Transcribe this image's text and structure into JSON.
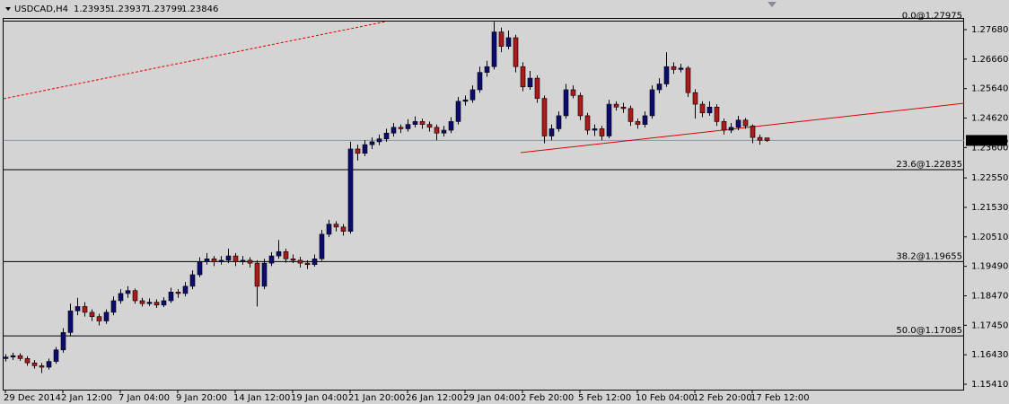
{
  "chart_data": {
    "type": "candlestick",
    "title": "USDCAD,H4",
    "up_color": "#0b0b72",
    "down_color": "#b01818",
    "wick_color": "#000000",
    "xlim": [
      -0.25,
      133.5
    ],
    "ylim": [
      1.15224,
      1.28022
    ],
    "yticks": [
      {
        "value": 1.2768,
        "label": "1.27680"
      },
      {
        "value": 1.2666,
        "label": "1.26660"
      },
      {
        "value": 1.2564,
        "label": "1.25640"
      },
      {
        "value": 1.2462,
        "label": "1.24620"
      },
      {
        "value": 1.236,
        "label": "1.23600"
      },
      {
        "value": 1.2255,
        "label": "1.22550"
      },
      {
        "value": 1.2153,
        "label": "1.21530"
      },
      {
        "value": 1.2051,
        "label": "1.20510"
      },
      {
        "value": 1.1949,
        "label": "1.19490"
      },
      {
        "value": 1.1847,
        "label": "1.18470"
      },
      {
        "value": 1.1745,
        "label": "1.17450"
      },
      {
        "value": 1.1643,
        "label": "1.16430"
      },
      {
        "value": 1.1541,
        "label": "1.15410"
      }
    ],
    "xticks": [
      {
        "value": 0,
        "label": "29 Dec 2014"
      },
      {
        "value": 8,
        "label": "2 Jan 12:00"
      },
      {
        "value": 16,
        "label": "7 Jan 04:00"
      },
      {
        "value": 24,
        "label": "9 Jan 20:00"
      },
      {
        "value": 32,
        "label": "14 Jan 12:00"
      },
      {
        "value": 40,
        "label": "19 Jan 04:00"
      },
      {
        "value": 48,
        "label": "21 Jan 20:00"
      },
      {
        "value": 56,
        "label": "26 Jan 12:00"
      },
      {
        "value": 64,
        "label": "29 Jan 04:00"
      },
      {
        "value": 72,
        "label": "2 Feb 20:00"
      },
      {
        "value": 80,
        "label": "5 Feb 12:00"
      },
      {
        "value": 88,
        "label": "10 Feb 04:00"
      },
      {
        "value": 96,
        "label": "12 Feb 20:00"
      },
      {
        "value": 104,
        "label": "17 Feb 12:00"
      }
    ],
    "fib_levels": [
      {
        "value": 1.27975,
        "label": "0.0@1.27975"
      },
      {
        "value": 1.22835,
        "label": "23.6@1.22835"
      },
      {
        "value": 1.19655,
        "label": "38.2@1.19655"
      },
      {
        "value": 1.17085,
        "label": "50.0@1.17085"
      }
    ],
    "trendlines": [
      {
        "color": "#e00000",
        "dashed": true,
        "points": [
          [
            -0.25,
            1.25288
          ],
          [
            53,
            1.2796
          ]
        ]
      },
      {
        "color": "#e00000",
        "dashed": false,
        "points": [
          [
            71.75,
            1.23424
          ],
          [
            133.5,
            1.25133
          ]
        ]
      }
    ],
    "candles": [
      [
        1.163,
        1.1645,
        1.162,
        1.1635
      ],
      [
        1.1635,
        1.165,
        1.1625,
        1.164
      ],
      [
        1.164,
        1.1648,
        1.1622,
        1.163
      ],
      [
        1.163,
        1.1638,
        1.1605,
        1.1615
      ],
      [
        1.1615,
        1.1625,
        1.1595,
        1.1605
      ],
      [
        1.1605,
        1.1615,
        1.158,
        1.16
      ],
      [
        1.16,
        1.163,
        1.1592,
        1.162
      ],
      [
        1.162,
        1.167,
        1.1612,
        1.166
      ],
      [
        1.166,
        1.1735,
        1.165,
        1.172
      ],
      [
        1.172,
        1.182,
        1.171,
        1.1795
      ],
      [
        1.1795,
        1.184,
        1.178,
        1.181
      ],
      [
        1.181,
        1.1825,
        1.1775,
        1.179
      ],
      [
        1.179,
        1.18,
        1.176,
        1.1775
      ],
      [
        1.1775,
        1.1785,
        1.1745,
        1.176
      ],
      [
        1.176,
        1.18,
        1.175,
        1.179
      ],
      [
        1.179,
        1.1845,
        1.178,
        1.183
      ],
      [
        1.183,
        1.187,
        1.182,
        1.1855
      ],
      [
        1.1855,
        1.188,
        1.184,
        1.1865
      ],
      [
        1.1865,
        1.1872,
        1.182,
        1.183
      ],
      [
        1.183,
        1.184,
        1.181,
        1.182
      ],
      [
        1.182,
        1.1838,
        1.1812,
        1.1825
      ],
      [
        1.1825,
        1.1835,
        1.1805,
        1.1815
      ],
      [
        1.1815,
        1.1842,
        1.1808,
        1.183
      ],
      [
        1.183,
        1.1875,
        1.1822,
        1.186
      ],
      [
        1.186,
        1.187,
        1.184,
        1.1855
      ],
      [
        1.1855,
        1.1895,
        1.1845,
        1.188
      ],
      [
        1.188,
        1.1935,
        1.187,
        1.192
      ],
      [
        1.192,
        1.198,
        1.1912,
        1.1965
      ],
      [
        1.1965,
        1.1995,
        1.1955,
        1.1975
      ],
      [
        1.1975,
        1.1985,
        1.195,
        1.1965
      ],
      [
        1.1965,
        1.1985,
        1.1955,
        1.197
      ],
      [
        1.197,
        1.201,
        1.196,
        1.1985
      ],
      [
        1.1985,
        1.1995,
        1.195,
        1.1965
      ],
      [
        1.1965,
        1.1985,
        1.1955,
        1.197
      ],
      [
        1.197,
        1.198,
        1.1945,
        1.196
      ],
      [
        1.196,
        1.197,
        1.181,
        1.188
      ],
      [
        1.188,
        1.1975,
        1.187,
        1.196
      ],
      [
        1.196,
        1.1998,
        1.195,
        1.1985
      ],
      [
        1.1985,
        1.204,
        1.1975,
        1.2
      ],
      [
        1.2,
        1.201,
        1.1962,
        1.1975
      ],
      [
        1.1975,
        1.199,
        1.196,
        1.197
      ],
      [
        1.197,
        1.1982,
        1.1945,
        1.196
      ],
      [
        1.196,
        1.197,
        1.194,
        1.1955
      ],
      [
        1.1955,
        1.199,
        1.1948,
        1.1975
      ],
      [
        1.1975,
        1.2075,
        1.1968,
        1.206
      ],
      [
        1.206,
        1.211,
        1.205,
        1.2095
      ],
      [
        1.2095,
        1.2105,
        1.207,
        1.2085
      ],
      [
        1.2085,
        1.2095,
        1.2055,
        1.207
      ],
      [
        1.207,
        1.238,
        1.2062,
        1.2355
      ],
      [
        1.2355,
        1.237,
        1.2315,
        1.234
      ],
      [
        1.234,
        1.2385,
        1.233,
        1.237
      ],
      [
        1.237,
        1.2395,
        1.2355,
        1.238
      ],
      [
        1.238,
        1.2405,
        1.2368,
        1.239
      ],
      [
        1.239,
        1.2425,
        1.238,
        1.241
      ],
      [
        1.241,
        1.2445,
        1.2398,
        1.243
      ],
      [
        1.243,
        1.244,
        1.241,
        1.2425
      ],
      [
        1.2425,
        1.2458,
        1.2415,
        1.244
      ],
      [
        1.244,
        1.2468,
        1.243,
        1.245
      ],
      [
        1.245,
        1.246,
        1.2425,
        1.244
      ],
      [
        1.244,
        1.245,
        1.2415,
        1.243
      ],
      [
        1.243,
        1.244,
        1.2385,
        1.241
      ],
      [
        1.241,
        1.2435,
        1.2398,
        1.242
      ],
      [
        1.242,
        1.2465,
        1.241,
        1.245
      ],
      [
        1.245,
        1.2535,
        1.244,
        1.252
      ],
      [
        1.252,
        1.254,
        1.2505,
        1.2525
      ],
      [
        1.2525,
        1.2575,
        1.2515,
        1.256
      ],
      [
        1.256,
        1.264,
        1.255,
        1.262
      ],
      [
        1.262,
        1.266,
        1.2605,
        1.264
      ],
      [
        1.264,
        1.2795,
        1.263,
        1.276
      ],
      [
        1.276,
        1.2775,
        1.269,
        1.271
      ],
      [
        1.271,
        1.2765,
        1.27,
        1.274
      ],
      [
        1.274,
        1.275,
        1.262,
        1.264
      ],
      [
        1.264,
        1.2655,
        1.2555,
        1.257
      ],
      [
        1.257,
        1.2625,
        1.256,
        1.26
      ],
      [
        1.26,
        1.261,
        1.2515,
        1.253
      ],
      [
        1.253,
        1.254,
        1.2375,
        1.24
      ],
      [
        1.24,
        1.244,
        1.2385,
        1.2425
      ],
      [
        1.2425,
        1.2485,
        1.2415,
        1.247
      ],
      [
        1.247,
        1.258,
        1.246,
        1.256
      ],
      [
        1.256,
        1.2575,
        1.253,
        1.254
      ],
      [
        1.254,
        1.255,
        1.2455,
        1.247
      ],
      [
        1.247,
        1.248,
        1.2405,
        1.242
      ],
      [
        1.242,
        1.244,
        1.24,
        1.2425
      ],
      [
        1.2425,
        1.2435,
        1.2385,
        1.24
      ],
      [
        1.24,
        1.2525,
        1.2392,
        1.251
      ],
      [
        1.251,
        1.252,
        1.2488,
        1.25
      ],
      [
        1.25,
        1.2515,
        1.248,
        1.2495
      ],
      [
        1.2495,
        1.2505,
        1.2435,
        1.245
      ],
      [
        1.245,
        1.246,
        1.2425,
        1.244
      ],
      [
        1.244,
        1.2485,
        1.243,
        1.247
      ],
      [
        1.247,
        1.2575,
        1.246,
        1.256
      ],
      [
        1.256,
        1.26,
        1.2548,
        1.258
      ],
      [
        1.258,
        1.269,
        1.257,
        1.264
      ],
      [
        1.264,
        1.2655,
        1.2615,
        1.263
      ],
      [
        1.263,
        1.265,
        1.262,
        1.2635
      ],
      [
        1.2635,
        1.2642,
        1.2535,
        1.255
      ],
      [
        1.255,
        1.2562,
        1.246,
        1.251
      ],
      [
        1.251,
        1.252,
        1.2465,
        1.248
      ],
      [
        1.248,
        1.252,
        1.247,
        1.25
      ],
      [
        1.25,
        1.251,
        1.2435,
        1.245
      ],
      [
        1.245,
        1.246,
        1.2405,
        1.242
      ],
      [
        1.242,
        1.2445,
        1.241,
        1.243
      ],
      [
        1.243,
        1.247,
        1.242,
        1.2455
      ],
      [
        1.2455,
        1.2462,
        1.2425,
        1.2435
      ],
      [
        1.2435,
        1.244,
        1.2375,
        1.2395
      ],
      [
        1.2395,
        1.2405,
        1.237,
        1.2385
      ],
      [
        1.23935,
        1.23937,
        1.23799,
        1.23846
      ]
    ]
  }
}
